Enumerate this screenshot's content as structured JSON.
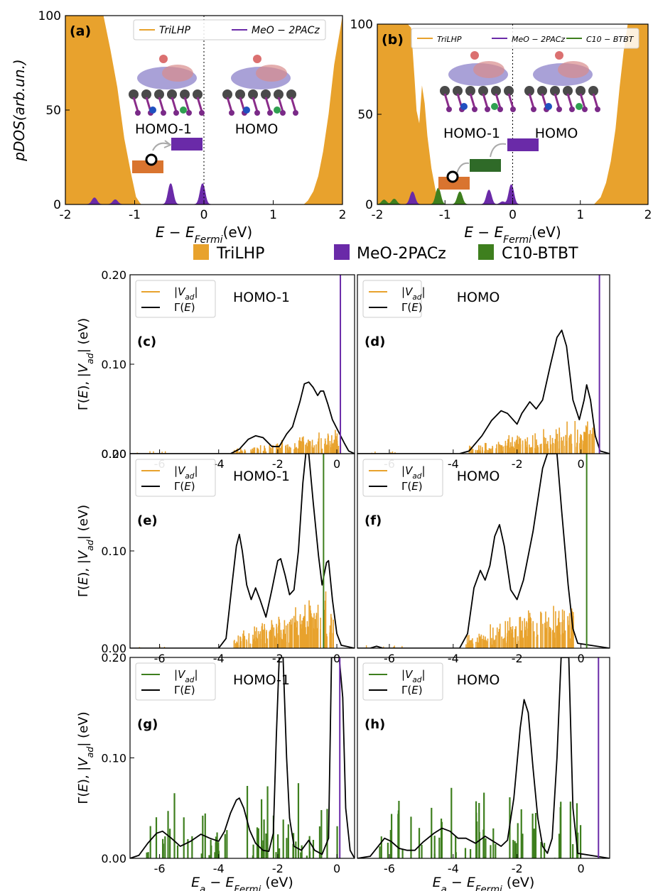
{
  "figure_legend": [
    {
      "label": "TriLHP",
      "color": "#E8A22D"
    },
    {
      "label": "MeO-2PACz",
      "color": "#6A2AA8"
    },
    {
      "label": "C10-BTBT",
      "color": "#3E7F1E"
    }
  ],
  "colors": {
    "trilhp": "#E8A22D",
    "meo": "#6A2AA8",
    "btbt": "#3E7F1E",
    "homo1_box": "#D9742F",
    "homo_box": "#6A2AA8",
    "btbt_box": "#2F6A28"
  },
  "icons": [
    "arrow-icon",
    "hole-icon",
    "molecule-structure-image"
  ],
  "chart_data": [
    {
      "type": "area",
      "panel_label": "(a)",
      "ylabel": "pDOS(arb.un.)",
      "xlabel": "E − E_Fermi(eV)",
      "xlim": [
        -2,
        2
      ],
      "ylim": [
        0,
        100
      ],
      "x_ticks": [
        "-2",
        "-1",
        "0",
        "1",
        "2"
      ],
      "y_ticks": [
        "0",
        "50",
        "100"
      ],
      "fermi_line": 0,
      "legend": [
        "TriLHP",
        "MeO − 2PACz"
      ],
      "series": [
        {
          "name": "TriLHP",
          "kind": "area",
          "x": [
            -2.0,
            -1.8,
            -1.6,
            -1.45,
            -1.35,
            -1.25,
            -1.15,
            -1.05,
            -0.98,
            -0.92,
            -0.9
          ],
          "y": [
            100,
            100,
            100,
            100,
            82,
            62,
            35,
            16,
            4,
            0.6,
            0
          ]
        },
        {
          "name": "TriLHP",
          "kind": "area",
          "x": [
            1.44,
            1.5,
            1.58,
            1.65,
            1.72,
            1.8,
            1.88,
            2.0
          ],
          "y": [
            0,
            2,
            7,
            15,
            28,
            48,
            74,
            100
          ]
        },
        {
          "name": "MeO − 2PACz",
          "kind": "peaks",
          "peaks": [
            {
              "x": -1.58,
              "y": 3.5
            },
            {
              "x": -1.28,
              "y": 2.5
            },
            {
              "x": -0.48,
              "y": 11
            },
            {
              "x": -0.02,
              "y": 11
            }
          ]
        }
      ],
      "annotations": [
        "HOMO-1",
        "HOMO"
      ]
    },
    {
      "type": "area",
      "panel_label": "(b)",
      "xlabel": "E − E_Fermi(eV)",
      "xlim": [
        -2,
        2
      ],
      "ylim": [
        0,
        100
      ],
      "x_ticks": [
        "-2",
        "-1",
        "0",
        "1",
        "2"
      ],
      "y_ticks": [
        "0",
        "50",
        "100"
      ],
      "fermi_line": 0,
      "legend": [
        "TriLHP",
        "MeO − 2PACz",
        "C10 − BTBT"
      ],
      "series": [
        {
          "name": "TriLHP",
          "kind": "area",
          "x": [
            -2.0,
            -1.9,
            -1.8,
            -1.72,
            -1.65,
            -1.6,
            -1.55,
            -1.5,
            -1.45,
            -1.42,
            -1.38,
            -1.34,
            -1.3,
            -1.26,
            -1.2,
            -1.14,
            -1.1,
            -1.06,
            -1.0
          ],
          "y": [
            100,
            100,
            100,
            100,
            100,
            100,
            100,
            98,
            70,
            52,
            45,
            66,
            56,
            38,
            20,
            8,
            3,
            0.5,
            0
          ]
        },
        {
          "name": "TriLHP",
          "kind": "area",
          "x": [
            1.2,
            1.3,
            1.38,
            1.45,
            1.52,
            1.58,
            1.64,
            1.7,
            1.8,
            2.0
          ],
          "y": [
            0,
            4,
            12,
            24,
            42,
            65,
            85,
            100,
            100,
            100
          ]
        },
        {
          "name": "C10 − BTBT",
          "kind": "peaks",
          "peaks": [
            {
              "x": -1.9,
              "y": 2.5
            },
            {
              "x": -1.75,
              "y": 3
            },
            {
              "x": -1.48,
              "y": 3
            },
            {
              "x": -1.1,
              "y": 9
            },
            {
              "x": -0.78,
              "y": 7
            },
            {
              "x": -0.35,
              "y": 2
            }
          ]
        },
        {
          "name": "MeO − 2PACz",
          "kind": "peaks",
          "peaks": [
            {
              "x": -1.48,
              "y": 7
            },
            {
              "x": -0.35,
              "y": 8
            },
            {
              "x": -0.15,
              "y": 1.5
            },
            {
              "x": -0.02,
              "y": 11
            }
          ]
        }
      ],
      "annotations": [
        "HOMO-1",
        "HOMO"
      ]
    },
    {
      "type": "bar+line",
      "panel_label": "(c)",
      "ylabel": "Γ(E), |V_ad| (eV)",
      "xlim": [
        -7,
        0.6
      ],
      "ylim": [
        0,
        0.2
      ],
      "x_ticks": [
        "-6",
        "-4",
        "-2",
        "0"
      ],
      "y_ticks": [
        "0.00",
        "0.10",
        "0.20"
      ],
      "title_annot": "HOMO-1",
      "legend": [
        "|V_ad|",
        "Γ(E)"
      ],
      "bar_color": "#E8A22D",
      "vline": {
        "x": 0.12,
        "color": "#6A2AA8"
      },
      "gamma": [
        [
          -7,
          0
        ],
        [
          -3.6,
          0
        ],
        [
          -3.3,
          0.005
        ],
        [
          -3.0,
          0.016
        ],
        [
          -2.75,
          0.02
        ],
        [
          -2.5,
          0.018
        ],
        [
          -2.2,
          0.008
        ],
        [
          -1.95,
          0.008
        ],
        [
          -1.7,
          0.022
        ],
        [
          -1.5,
          0.03
        ],
        [
          -1.25,
          0.058
        ],
        [
          -1.1,
          0.078
        ],
        [
          -0.95,
          0.08
        ],
        [
          -0.8,
          0.074
        ],
        [
          -0.65,
          0.065
        ],
        [
          -0.55,
          0.07
        ],
        [
          -0.45,
          0.07
        ],
        [
          -0.3,
          0.055
        ],
        [
          -0.15,
          0.038
        ],
        [
          0.05,
          0.025
        ],
        [
          0.25,
          0.012
        ],
        [
          0.4,
          0.003
        ],
        [
          0.6,
          0
        ]
      ],
      "bars": {
        "x_range": [
          -3.5,
          0.2
        ],
        "max": 0.03,
        "seed": 3
      }
    },
    {
      "type": "bar+line",
      "panel_label": "(d)",
      "xlim": [
        -7,
        0.9
      ],
      "ylim": [
        0,
        0.2
      ],
      "x_ticks": [
        "-6",
        "-4",
        "-2",
        "0"
      ],
      "title_annot": "HOMO",
      "legend": [
        "|V_ad|",
        "Γ(E)"
      ],
      "bar_color": "#E8A22D",
      "vline": {
        "x": 0.58,
        "color": "#6A2AA8"
      },
      "gamma": [
        [
          -7,
          0
        ],
        [
          -3.8,
          0
        ],
        [
          -3.5,
          0.003
        ],
        [
          -3.1,
          0.02
        ],
        [
          -2.8,
          0.037
        ],
        [
          -2.5,
          0.048
        ],
        [
          -2.3,
          0.045
        ],
        [
          -2.0,
          0.033
        ],
        [
          -1.85,
          0.045
        ],
        [
          -1.6,
          0.058
        ],
        [
          -1.4,
          0.05
        ],
        [
          -1.2,
          0.06
        ],
        [
          -0.95,
          0.1
        ],
        [
          -0.75,
          0.13
        ],
        [
          -0.6,
          0.138
        ],
        [
          -0.45,
          0.12
        ],
        [
          -0.25,
          0.06
        ],
        [
          -0.05,
          0.038
        ],
        [
          0.1,
          0.06
        ],
        [
          0.18,
          0.077
        ],
        [
          0.3,
          0.06
        ],
        [
          0.45,
          0.02
        ],
        [
          0.6,
          0.003
        ],
        [
          0.9,
          0
        ]
      ],
      "bars": {
        "x_range": [
          -3.5,
          0.5
        ],
        "max": 0.05,
        "seed": 7
      }
    },
    {
      "type": "bar+line",
      "panel_label": "(e)",
      "ylabel": "Γ(E), |V_ad| (eV)",
      "xlim": [
        -7,
        0.6
      ],
      "ylim": [
        0,
        0.2
      ],
      "x_ticks": [
        "-6",
        "-4",
        "-2",
        "0"
      ],
      "y_ticks": [
        "0.00",
        "0.10",
        "0.20"
      ],
      "title_annot": "HOMO-1",
      "legend": [
        "|V_ad|",
        "Γ(E)"
      ],
      "bar_color": "#E8A22D",
      "vline": {
        "x": -0.45,
        "color": "#3E7F1E"
      },
      "gamma": [
        [
          -7,
          0
        ],
        [
          -4.0,
          0
        ],
        [
          -3.75,
          0.01
        ],
        [
          -3.55,
          0.065
        ],
        [
          -3.4,
          0.105
        ],
        [
          -3.3,
          0.117
        ],
        [
          -3.2,
          0.1
        ],
        [
          -3.05,
          0.065
        ],
        [
          -2.9,
          0.05
        ],
        [
          -2.75,
          0.062
        ],
        [
          -2.6,
          0.05
        ],
        [
          -2.4,
          0.032
        ],
        [
          -2.2,
          0.06
        ],
        [
          -2.0,
          0.09
        ],
        [
          -1.9,
          0.092
        ],
        [
          -1.75,
          0.075
        ],
        [
          -1.6,
          0.055
        ],
        [
          -1.45,
          0.06
        ],
        [
          -1.3,
          0.1
        ],
        [
          -1.15,
          0.17
        ],
        [
          -1.05,
          0.2
        ],
        [
          -0.95,
          0.2
        ],
        [
          -0.8,
          0.15
        ],
        [
          -0.62,
          0.095
        ],
        [
          -0.5,
          0.065
        ],
        [
          -0.35,
          0.088
        ],
        [
          -0.28,
          0.09
        ],
        [
          -0.15,
          0.05
        ],
        [
          0.0,
          0.015
        ],
        [
          0.15,
          0.003
        ],
        [
          0.6,
          0
        ]
      ],
      "bars": {
        "x_range": [
          -3.5,
          -0.1
        ],
        "max": 0.07,
        "seed": 11
      }
    },
    {
      "type": "bar+line",
      "panel_label": "(f)",
      "xlim": [
        -7,
        0.9
      ],
      "ylim": [
        0,
        0.2
      ],
      "x_ticks": [
        "-6",
        "-4",
        "-2",
        "0"
      ],
      "title_annot": "HOMO",
      "legend": [
        "|V_ad|",
        "Γ(E)"
      ],
      "bar_color": "#E8A22D",
      "vline": {
        "x": 0.18,
        "color": "#3E7F1E"
      },
      "gamma": [
        [
          -7,
          0
        ],
        [
          -6.6,
          0
        ],
        [
          -6.4,
          0.002
        ],
        [
          -6.2,
          0
        ],
        [
          -3.8,
          0
        ],
        [
          -3.55,
          0.015
        ],
        [
          -3.35,
          0.062
        ],
        [
          -3.15,
          0.08
        ],
        [
          -3.0,
          0.07
        ],
        [
          -2.85,
          0.085
        ],
        [
          -2.7,
          0.115
        ],
        [
          -2.55,
          0.127
        ],
        [
          -2.4,
          0.105
        ],
        [
          -2.2,
          0.06
        ],
        [
          -2.0,
          0.05
        ],
        [
          -1.8,
          0.07
        ],
        [
          -1.5,
          0.12
        ],
        [
          -1.2,
          0.185
        ],
        [
          -1.05,
          0.2
        ],
        [
          -0.75,
          0.2
        ],
        [
          -0.6,
          0.14
        ],
        [
          -0.4,
          0.065
        ],
        [
          -0.25,
          0.02
        ],
        [
          -0.1,
          0.005
        ],
        [
          0.9,
          0
        ]
      ],
      "bars": {
        "x_range": [
          -3.6,
          -0.2
        ],
        "max": 0.07,
        "seed": 19
      }
    },
    {
      "type": "bar+line",
      "panel_label": "(g)",
      "ylabel": "Γ(E), |V_ad| (eV)",
      "xlabel": "E_a − E_Fermi (eV)",
      "xlim": [
        -7,
        0.6
      ],
      "ylim": [
        0,
        0.2
      ],
      "x_ticks": [
        "-6",
        "-4",
        "-2",
        "0"
      ],
      "y_ticks": [
        "0.00",
        "0.10",
        "0.20"
      ],
      "title_annot": "HOMO-1",
      "legend": [
        "|V_ad|",
        "Γ(E)"
      ],
      "bar_color": "#3E7F1E",
      "vline": {
        "x": 0.1,
        "color": "#6A2AA8"
      },
      "gamma": [
        [
          -7,
          0
        ],
        [
          -6.7,
          0.003
        ],
        [
          -6.4,
          0.015
        ],
        [
          -6.1,
          0.025
        ],
        [
          -5.9,
          0.027
        ],
        [
          -5.6,
          0.02
        ],
        [
          -5.3,
          0.012
        ],
        [
          -4.95,
          0.017
        ],
        [
          -4.6,
          0.024
        ],
        [
          -4.3,
          0.02
        ],
        [
          -4.0,
          0.017
        ],
        [
          -3.8,
          0.027
        ],
        [
          -3.6,
          0.045
        ],
        [
          -3.4,
          0.058
        ],
        [
          -3.3,
          0.06
        ],
        [
          -3.15,
          0.05
        ],
        [
          -2.95,
          0.028
        ],
        [
          -2.75,
          0.015
        ],
        [
          -2.5,
          0.008
        ],
        [
          -2.3,
          0.007
        ],
        [
          -2.15,
          0.025
        ],
        [
          -2.05,
          0.12
        ],
        [
          -1.95,
          0.2
        ],
        [
          -1.82,
          0.2
        ],
        [
          -1.7,
          0.1
        ],
        [
          -1.6,
          0.04
        ],
        [
          -1.45,
          0.012
        ],
        [
          -1.2,
          0.008
        ],
        [
          -0.95,
          0.018
        ],
        [
          -0.75,
          0.008
        ],
        [
          -0.5,
          0.004
        ],
        [
          -0.28,
          0.02
        ],
        [
          -0.18,
          0.2
        ],
        [
          0.08,
          0.2
        ],
        [
          0.2,
          0.16
        ],
        [
          0.3,
          0.05
        ],
        [
          0.45,
          0.008
        ],
        [
          0.6,
          0
        ]
      ],
      "bars": {
        "x_range": [
          -6.5,
          0.1
        ],
        "max": 0.08,
        "seed": 23
      }
    },
    {
      "type": "bar+line",
      "panel_label": "(h)",
      "xlabel": "E_a − E_Fermi (eV)",
      "xlim": [
        -7,
        0.9
      ],
      "ylim": [
        0,
        0.2
      ],
      "x_ticks": [
        "-6",
        "-4",
        "-2",
        "0"
      ],
      "title_annot": "HOMO",
      "legend": [
        "|V_ad|",
        "Γ(E)"
      ],
      "bar_color": "#3E7F1E",
      "vline": {
        "x": 0.55,
        "color": "#6A2AA8"
      },
      "gamma": [
        [
          -7,
          0
        ],
        [
          -6.6,
          0.002
        ],
        [
          -6.35,
          0.012
        ],
        [
          -6.15,
          0.02
        ],
        [
          -5.95,
          0.017
        ],
        [
          -5.7,
          0.01
        ],
        [
          -5.45,
          0.008
        ],
        [
          -5.2,
          0.008
        ],
        [
          -4.95,
          0.016
        ],
        [
          -4.6,
          0.025
        ],
        [
          -4.35,
          0.03
        ],
        [
          -4.1,
          0.027
        ],
        [
          -3.85,
          0.02
        ],
        [
          -3.6,
          0.02
        ],
        [
          -3.3,
          0.015
        ],
        [
          -3.0,
          0.022
        ],
        [
          -2.75,
          0.017
        ],
        [
          -2.5,
          0.012
        ],
        [
          -2.3,
          0.018
        ],
        [
          -2.1,
          0.06
        ],
        [
          -1.9,
          0.13
        ],
        [
          -1.78,
          0.158
        ],
        [
          -1.65,
          0.145
        ],
        [
          -1.5,
          0.09
        ],
        [
          -1.35,
          0.04
        ],
        [
          -1.2,
          0.012
        ],
        [
          -1.05,
          0.005
        ],
        [
          -0.9,
          0.02
        ],
        [
          -0.75,
          0.1
        ],
        [
          -0.62,
          0.2
        ],
        [
          -0.38,
          0.2
        ],
        [
          -0.25,
          0.05
        ],
        [
          -0.1,
          0.005
        ],
        [
          0.9,
          0
        ]
      ],
      "bars": {
        "x_range": [
          -6.4,
          0.2
        ],
        "max": 0.075,
        "seed": 29
      }
    }
  ]
}
